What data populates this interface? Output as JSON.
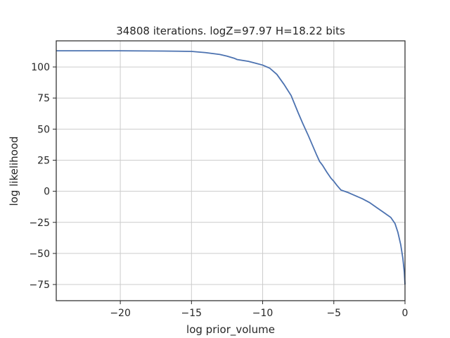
{
  "chart_data": {
    "type": "line",
    "title": "34808 iterations. logZ=97.97 H=18.22 bits",
    "xlabel": "log prior_volume",
    "ylabel": "log likelihood",
    "xlim": [
      -24.5,
      0
    ],
    "ylim": [
      -88,
      121
    ],
    "xticks": [
      -20,
      -15,
      -10,
      -5,
      0
    ],
    "xtick_labels": [
      "−20",
      "−15",
      "−10",
      "−5",
      "0"
    ],
    "yticks": [
      -75,
      -50,
      -25,
      0,
      25,
      50,
      75,
      100
    ],
    "ytick_labels": [
      "−75",
      "−50",
      "−25",
      "0",
      "25",
      "50",
      "75",
      "100"
    ],
    "grid": true,
    "series": [
      {
        "color": "#4c72b0",
        "x": [
          -24.5,
          -20,
          -17,
          -15,
          -14,
          -13,
          -12.5,
          -12,
          -11.8,
          -11,
          -10.5,
          -10,
          -9.5,
          -9,
          -8.5,
          -8,
          -7.5,
          -7.2,
          -7,
          -6.8,
          -6.5,
          -6.2,
          -6,
          -5.8,
          -5.5,
          -5.2,
          -5,
          -4.8,
          -4.5,
          -4,
          -3.8,
          -3.5,
          -3,
          -2.5,
          -2,
          -1.5,
          -1,
          -0.7,
          -0.5,
          -0.3,
          -0.15,
          -0.05,
          0
        ],
        "y": [
          113,
          113,
          112.8,
          112.5,
          111.5,
          110,
          108.7,
          107,
          106,
          104.5,
          103,
          101.5,
          99,
          94,
          86,
          77,
          63,
          55,
          50,
          45,
          37,
          29,
          24,
          21,
          15.5,
          10.5,
          8,
          5,
          1,
          -1,
          -2,
          -3.5,
          -6,
          -9,
          -13,
          -17,
          -21,
          -26,
          -33,
          -43,
          -54,
          -65,
          -75
        ]
      }
    ]
  }
}
